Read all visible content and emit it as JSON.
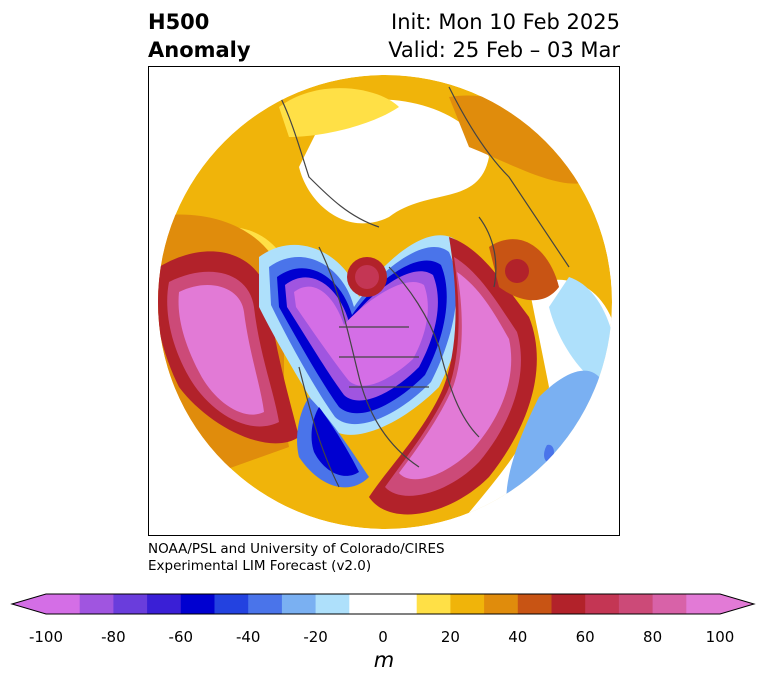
{
  "title": {
    "left_line1": "H500",
    "left_line2": "Anomaly",
    "right_line1": "Init: Mon 10 Feb 2025",
    "right_line2": "Valid: 25 Feb – 03 Mar"
  },
  "credit": {
    "line1": "NOAA/PSL and University of Colorado/CIRES",
    "line2": "Experimental LIM Forecast (v2.0)"
  },
  "colorbar": {
    "unit": "m",
    "ticks": [
      "-100",
      "-80",
      "-60",
      "-40",
      "-20",
      "0",
      "20",
      "40",
      "60",
      "80",
      "100"
    ],
    "tick_values": [
      -100,
      -80,
      -60,
      -40,
      -20,
      0,
      20,
      40,
      60,
      80,
      100
    ],
    "bins": [
      -100,
      -90,
      -80,
      -70,
      -60,
      -50,
      -40,
      -30,
      -20,
      -10,
      10,
      20,
      30,
      40,
      50,
      60,
      70,
      80,
      90,
      100
    ],
    "colors": [
      "#d46ee6",
      "#a055e0",
      "#6a3ddc",
      "#3a1fd6",
      "#0000d0",
      "#2342e0",
      "#4a74ea",
      "#7ab0f2",
      "#aee0fb",
      "#ffffff",
      "#ffe046",
      "#f0b40a",
      "#e08c0c",
      "#c85414",
      "#b2222a",
      "#c43654",
      "#cc4a78",
      "#d862a8",
      "#e27ad6"
    ],
    "under_color": "#d46ee6",
    "over_color": "#e27ad6"
  },
  "map": {
    "projection": "north-polar-stereographic",
    "field": "500 hPa geopotential height anomaly",
    "features": [
      "positive anomaly over eastern North Pacific",
      "negative anomaly over central North America",
      "positive anomaly over eastern North America and western Atlantic",
      "positive anomaly over North Atlantic near Greenland",
      "negative anomaly Arctic trough"
    ]
  }
}
